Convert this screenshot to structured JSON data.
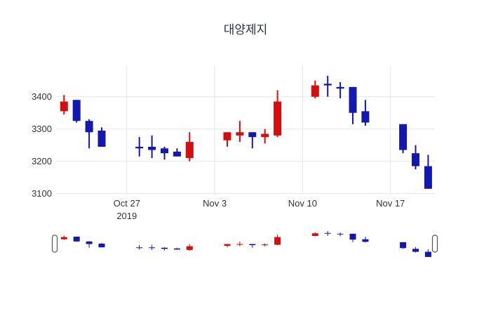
{
  "title": "대양제지",
  "colors": {
    "up": "#d40d0d",
    "down": "#1218b0",
    "grid": "#e7e7e7",
    "text": "#30353c",
    "title_text": "#2b3440",
    "background": "#ffffff",
    "slider_handle_fill": "#ffffff",
    "slider_handle_border": "#555555"
  },
  "y_axis": {
    "tick_labels": [
      "3400",
      "3300",
      "3200",
      "3100"
    ],
    "tick_values": [
      3400,
      3300,
      3200,
      3100
    ]
  },
  "x_axis": {
    "ticks": [
      {
        "label": "Oct 27",
        "sub": "2019",
        "date": "2019-10-27"
      },
      {
        "label": "Nov 3",
        "sub": "",
        "date": "2019-11-03"
      },
      {
        "label": "Nov 10",
        "sub": "",
        "date": "2019-11-10"
      },
      {
        "label": "Nov 17",
        "sub": "",
        "date": "2019-11-17"
      }
    ]
  },
  "rangeslider": {
    "present": true,
    "window_start": "2019-10-21",
    "window_end": "2019-11-21"
  },
  "chart_data": {
    "type": "candlestick",
    "title": "대양제지",
    "increasing_color": "#d40d0d",
    "decreasing_color": "#1218b0",
    "ylim": [
      3095,
      3495
    ],
    "grid": true,
    "legend": "none",
    "xticks": [
      "2019-10-27",
      "2019-11-03",
      "2019-11-10",
      "2019-11-17"
    ],
    "candles": [
      {
        "date": "2019-10-22",
        "open": 3355,
        "high": 3405,
        "low": 3345,
        "close": 3385
      },
      {
        "date": "2019-10-23",
        "open": 3390,
        "high": 3390,
        "low": 3320,
        "close": 3325
      },
      {
        "date": "2019-10-24",
        "open": 3325,
        "high": 3330,
        "low": 3240,
        "close": 3290
      },
      {
        "date": "2019-10-25",
        "open": 3295,
        "high": 3305,
        "low": 3245,
        "close": 3245
      },
      {
        "date": "2019-10-28",
        "open": 3245,
        "high": 3275,
        "low": 3215,
        "close": 3240
      },
      {
        "date": "2019-10-29",
        "open": 3245,
        "high": 3280,
        "low": 3210,
        "close": 3235
      },
      {
        "date": "2019-10-30",
        "open": 3240,
        "high": 3245,
        "low": 3205,
        "close": 3225
      },
      {
        "date": "2019-10-31",
        "open": 3230,
        "high": 3240,
        "low": 3215,
        "close": 3215
      },
      {
        "date": "2019-11-01",
        "open": 3210,
        "high": 3290,
        "low": 3200,
        "close": 3260
      },
      {
        "date": "2019-11-04",
        "open": 3265,
        "high": 3290,
        "low": 3245,
        "close": 3290
      },
      {
        "date": "2019-11-05",
        "open": 3280,
        "high": 3325,
        "low": 3260,
        "close": 3290
      },
      {
        "date": "2019-11-06",
        "open": 3290,
        "high": 3290,
        "low": 3240,
        "close": 3275
      },
      {
        "date": "2019-11-07",
        "open": 3275,
        "high": 3300,
        "low": 3255,
        "close": 3285
      },
      {
        "date": "2019-11-08",
        "open": 3280,
        "high": 3420,
        "low": 3275,
        "close": 3385
      },
      {
        "date": "2019-11-11",
        "open": 3400,
        "high": 3450,
        "low": 3395,
        "close": 3435
      },
      {
        "date": "2019-11-12",
        "open": 3440,
        "high": 3465,
        "low": 3400,
        "close": 3435
      },
      {
        "date": "2019-11-13",
        "open": 3430,
        "high": 3445,
        "low": 3395,
        "close": 3425
      },
      {
        "date": "2019-11-14",
        "open": 3430,
        "high": 3430,
        "low": 3315,
        "close": 3350
      },
      {
        "date": "2019-11-15",
        "open": 3355,
        "high": 3390,
        "low": 3310,
        "close": 3320
      },
      {
        "date": "2019-11-18",
        "open": 3315,
        "high": 3315,
        "low": 3225,
        "close": 3235
      },
      {
        "date": "2019-11-19",
        "open": 3225,
        "high": 3250,
        "low": 3175,
        "close": 3185
      },
      {
        "date": "2019-11-20",
        "open": 3185,
        "high": 3220,
        "low": 3115,
        "close": 3115
      }
    ]
  }
}
